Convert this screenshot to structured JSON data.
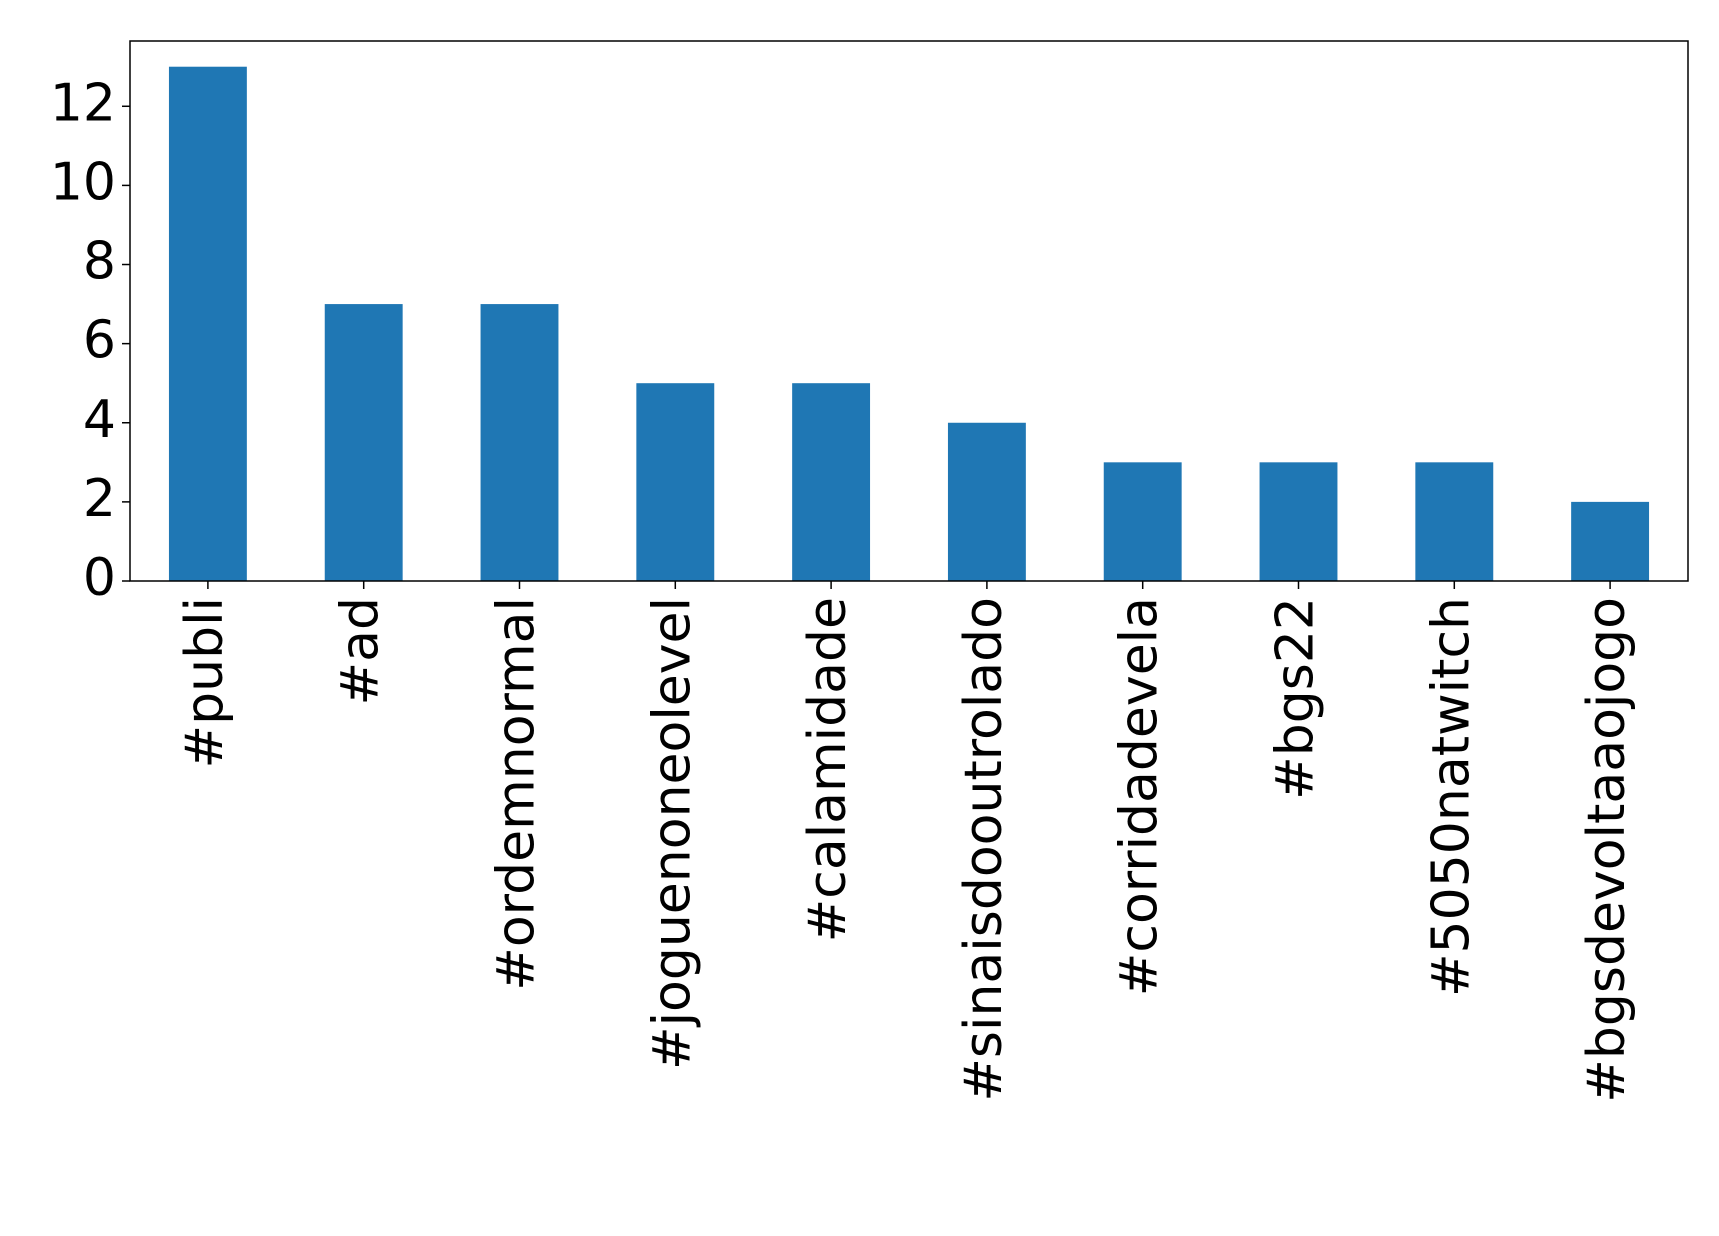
{
  "chart_data": {
    "type": "bar",
    "categories": [
      "#publi",
      "#ad",
      "#ordemnormal",
      "#joguenoneolevel",
      "#calamidade",
      "#sinaisdooutrolado",
      "#corridadevela",
      "#bgs22",
      "#5050natwitch",
      "#bgsdevoltaaojogo"
    ],
    "values": [
      13,
      7,
      7,
      5,
      5,
      4,
      3,
      3,
      3,
      2
    ],
    "color": "#1f77b4",
    "ylim": [
      0,
      13.65
    ],
    "yticks": [
      0,
      2,
      4,
      6,
      8,
      10,
      12
    ],
    "grid": false
  }
}
